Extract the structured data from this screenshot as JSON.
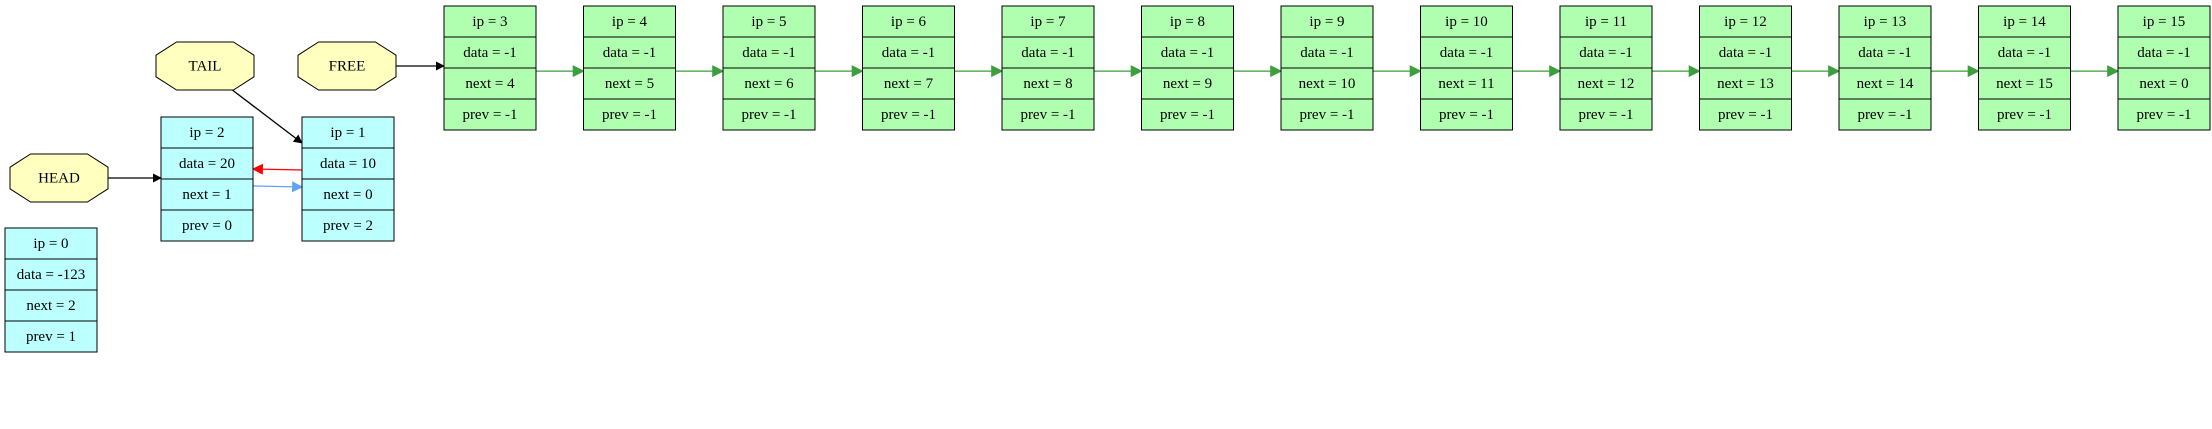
{
  "colors": {
    "used_node": "#bbffff",
    "free_node": "#b0ffb0",
    "pointer_node": "#ffffc0",
    "border": "#000000",
    "next_link": "#5fa3f4",
    "prev_link": "#ff0000",
    "free_link": "#3c9e3c",
    "pointer_link": "#000000"
  },
  "pointers": [
    {
      "id": "HEAD",
      "label": "HEAD",
      "target": 2
    },
    {
      "id": "TAIL",
      "label": "TAIL",
      "target": 1
    },
    {
      "id": "FREE",
      "label": "FREE",
      "target": 3
    }
  ],
  "nodes": [
    {
      "ip": 0,
      "kind": "used",
      "fields": [
        "ip = 0",
        "data = -123",
        "next = 2",
        "prev = 1"
      ]
    },
    {
      "ip": 1,
      "kind": "used",
      "fields": [
        "ip = 1",
        "data = 10",
        "next = 0",
        "prev = 2"
      ]
    },
    {
      "ip": 2,
      "kind": "used",
      "fields": [
        "ip = 2",
        "data = 20",
        "next = 1",
        "prev = 0"
      ]
    },
    {
      "ip": 3,
      "kind": "free",
      "fields": [
        "ip = 3",
        "data = -1",
        "next = 4",
        "prev = -1"
      ]
    },
    {
      "ip": 4,
      "kind": "free",
      "fields": [
        "ip = 4",
        "data = -1",
        "next = 5",
        "prev = -1"
      ]
    },
    {
      "ip": 5,
      "kind": "free",
      "fields": [
        "ip = 5",
        "data = -1",
        "next = 6",
        "prev = -1"
      ]
    },
    {
      "ip": 6,
      "kind": "free",
      "fields": [
        "ip = 6",
        "data = -1",
        "next = 7",
        "prev = -1"
      ]
    },
    {
      "ip": 7,
      "kind": "free",
      "fields": [
        "ip = 7",
        "data = -1",
        "next = 8",
        "prev = -1"
      ]
    },
    {
      "ip": 8,
      "kind": "free",
      "fields": [
        "ip = 8",
        "data = -1",
        "next = 9",
        "prev = -1"
      ]
    },
    {
      "ip": 9,
      "kind": "free",
      "fields": [
        "ip = 9",
        "data = -1",
        "next = 10",
        "prev = -1"
      ]
    },
    {
      "ip": 10,
      "kind": "free",
      "fields": [
        "ip = 10",
        "data = -1",
        "next = 11",
        "prev = -1"
      ]
    },
    {
      "ip": 11,
      "kind": "free",
      "fields": [
        "ip = 11",
        "data = -1",
        "next = 12",
        "prev = -1"
      ]
    },
    {
      "ip": 12,
      "kind": "free",
      "fields": [
        "ip = 12",
        "data = -1",
        "next = 13",
        "prev = -1"
      ]
    },
    {
      "ip": 13,
      "kind": "free",
      "fields": [
        "ip = 13",
        "data = -1",
        "next = 14",
        "prev = -1"
      ]
    },
    {
      "ip": 14,
      "kind": "free",
      "fields": [
        "ip = 14",
        "data = -1",
        "next = 15",
        "prev = -1"
      ]
    },
    {
      "ip": 15,
      "kind": "free",
      "fields": [
        "ip = 15",
        "data = -1",
        "next = 0",
        "prev = -1"
      ]
    }
  ],
  "edges": [
    {
      "from": "HEAD",
      "to": 2,
      "kind": "pointer"
    },
    {
      "from": "TAIL",
      "to": 1,
      "kind": "pointer"
    },
    {
      "from": "FREE",
      "to": 3,
      "kind": "pointer"
    },
    {
      "from": 2,
      "to": 1,
      "kind": "next"
    },
    {
      "from": 1,
      "to": 2,
      "kind": "prev"
    },
    {
      "from": 3,
      "to": 4,
      "kind": "free"
    },
    {
      "from": 4,
      "to": 5,
      "kind": "free"
    },
    {
      "from": 5,
      "to": 6,
      "kind": "free"
    },
    {
      "from": 6,
      "to": 7,
      "kind": "free"
    },
    {
      "from": 7,
      "to": 8,
      "kind": "free"
    },
    {
      "from": 8,
      "to": 9,
      "kind": "free"
    },
    {
      "from": 9,
      "to": 10,
      "kind": "free"
    },
    {
      "from": 10,
      "to": 11,
      "kind": "free"
    },
    {
      "from": 11,
      "to": 12,
      "kind": "free"
    },
    {
      "from": 12,
      "to": 13,
      "kind": "free"
    },
    {
      "from": 13,
      "to": 14,
      "kind": "free"
    },
    {
      "from": 14,
      "to": 15,
      "kind": "free"
    }
  ]
}
